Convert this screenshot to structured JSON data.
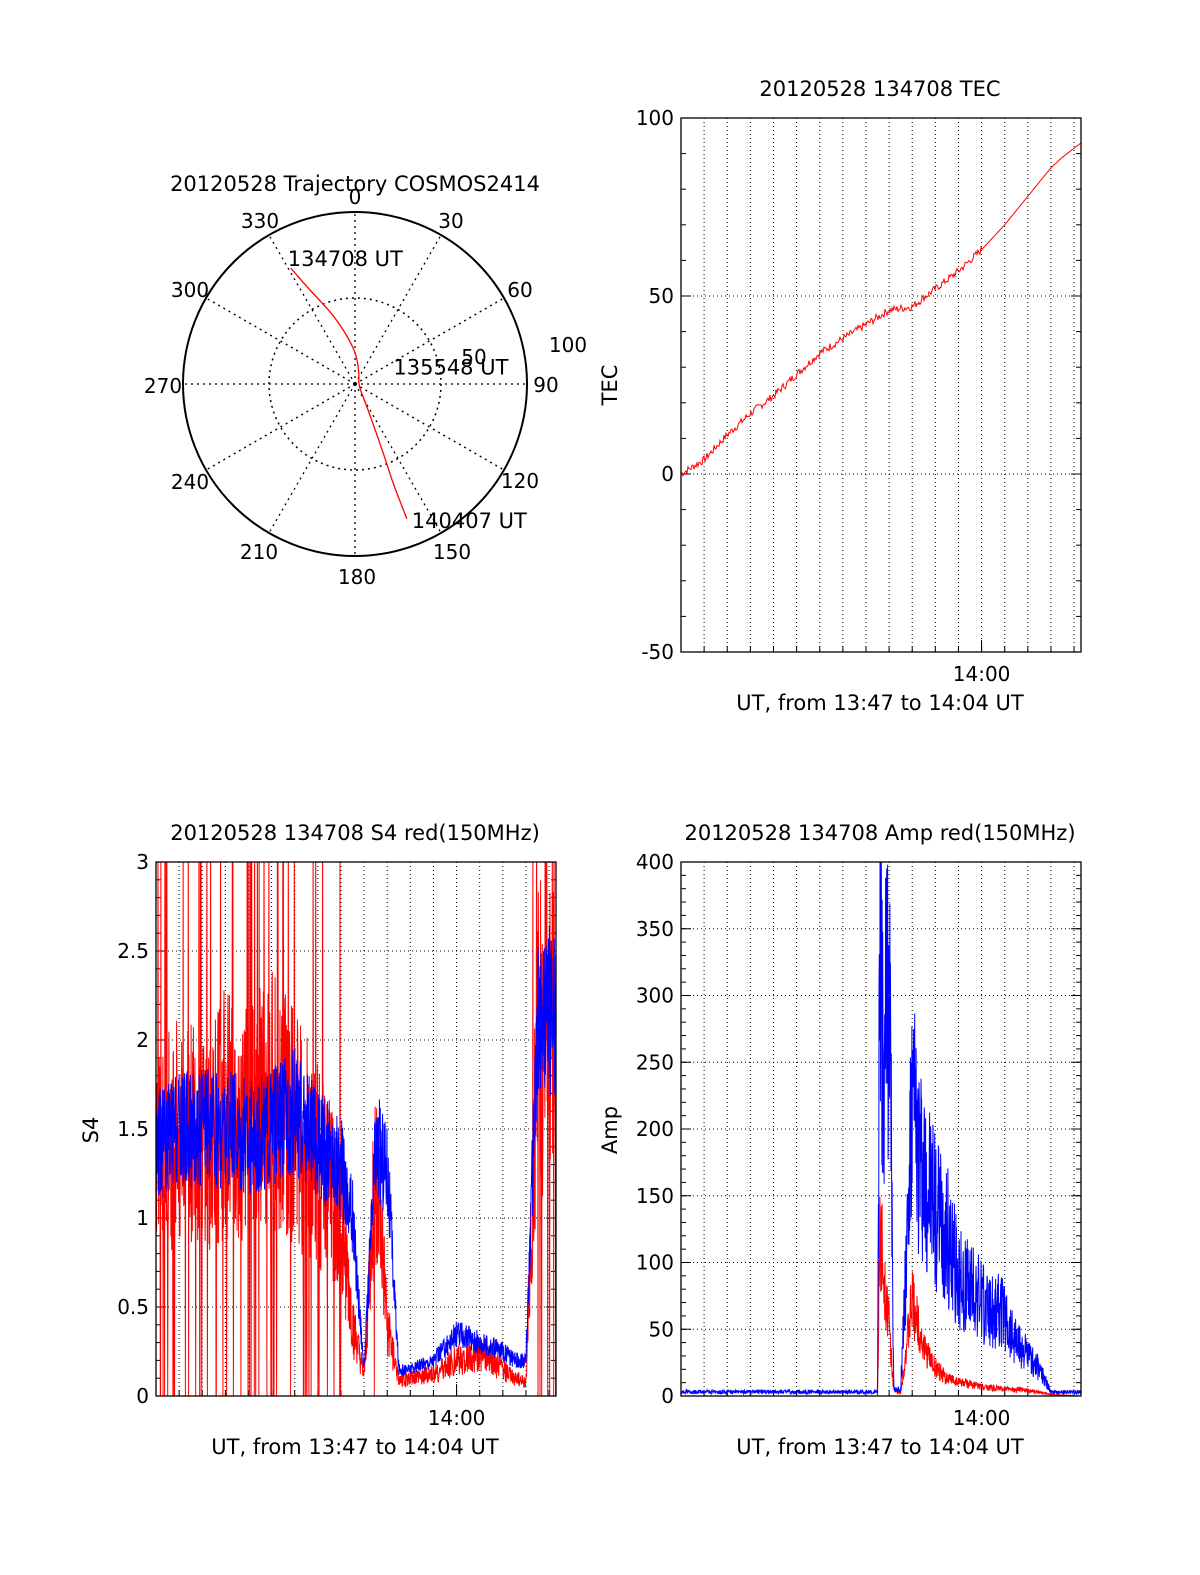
{
  "colors": {
    "red": "#ff0000",
    "blue": "#0000ff",
    "axis": "#000000",
    "grid": "#000000"
  },
  "chart_data": [
    {
      "type": "polar",
      "title": "20120528 Trajectory COSMOS2414",
      "angle_labels": [
        "0",
        "30",
        "60",
        "90",
        "120",
        "150",
        "180",
        "210",
        "240",
        "270",
        "300",
        "330"
      ],
      "radial_ticks": [
        "50",
        "100"
      ],
      "rlim": [
        0,
        100
      ],
      "grid": true,
      "series": [
        {
          "color": "red",
          "points": [
            [
              331,
              77
            ],
            [
              333,
              66
            ],
            [
              337,
              53
            ],
            [
              343,
              41
            ],
            [
              351,
              28
            ],
            [
              3,
              17
            ],
            [
              24,
              6
            ],
            [
              101,
              2
            ],
            [
              150,
              11
            ],
            [
              155,
              23
            ],
            [
              157,
              35
            ],
            [
              158,
              47
            ],
            [
              159,
              60
            ],
            [
              159,
              72
            ],
            [
              159,
              84
            ]
          ]
        }
      ],
      "annotations": [
        {
          "text": "134708 UT",
          "az": 331,
          "r": 77
        },
        {
          "text": "135548 UT",
          "az": 101,
          "r": 2
        },
        {
          "text": "140407 UT",
          "az": 159,
          "r": 84
        }
      ]
    },
    {
      "type": "line",
      "title": "20120528 134708 TEC",
      "xlabel": "UT, from 13:47 to 14:04 UT",
      "ylabel": "TEC",
      "xlim": [
        0,
        17.3
      ],
      "ylim": [
        -50,
        100
      ],
      "yticks": [
        "-50",
        "0",
        "50",
        "100"
      ],
      "xticks": [
        {
          "label": "14:00",
          "at": 13
        }
      ],
      "grid": true,
      "series": [
        {
          "color": "red",
          "x": [
            0,
            1,
            2,
            3,
            4,
            5,
            6,
            7,
            8,
            9,
            10,
            11,
            12,
            13,
            14,
            15,
            16,
            16.5,
            17.3
          ],
          "y": [
            0,
            4,
            11,
            17,
            22,
            28,
            34,
            38,
            42,
            46,
            47,
            52,
            57,
            63,
            70,
            78,
            86,
            89,
            93
          ]
        }
      ]
    },
    {
      "type": "line",
      "title": "20120528 134708 S4 red(150MHz)",
      "xlabel": "UT, from 13:47 to 14:04 UT",
      "ylabel": "S4",
      "xlim": [
        0,
        17.3
      ],
      "ylim": [
        0,
        3
      ],
      "yticks": [
        "0",
        "0.5",
        "1",
        "1.5",
        "2",
        "2.5",
        "3"
      ],
      "xticks": [
        {
          "label": "14:00",
          "at": 13
        }
      ],
      "grid": true,
      "series": [
        {
          "color": "red",
          "x": [
            0,
            1,
            2,
            3,
            4,
            5,
            6,
            7,
            8,
            8.5,
            9,
            9.5,
            10,
            10.5,
            11,
            12,
            13,
            14,
            15,
            15.5,
            16,
            16.5,
            17.3
          ],
          "y": [
            1.3,
            1.5,
            1.4,
            1.6,
            1.5,
            1.7,
            1.5,
            1.3,
            1.0,
            0.4,
            0.1,
            1.3,
            0.4,
            0.08,
            0.1,
            0.12,
            0.2,
            0.25,
            0.15,
            0.1,
            0.08,
            2.0,
            2.1
          ]
        },
        {
          "color": "blue",
          "x": [
            0,
            1,
            2,
            3,
            4,
            5,
            6,
            7,
            8,
            8.5,
            9,
            9.5,
            10,
            10.5,
            11,
            12,
            13,
            14,
            15,
            15.5,
            16,
            16.5,
            17.3
          ],
          "y": [
            1.4,
            1.5,
            1.5,
            1.5,
            1.45,
            1.5,
            1.6,
            1.4,
            1.3,
            1.0,
            0.15,
            1.4,
            1.3,
            0.15,
            0.15,
            0.2,
            0.35,
            0.3,
            0.25,
            0.2,
            0.2,
            2.1,
            2.2
          ]
        }
      ]
    },
    {
      "type": "line",
      "title": "20120528 134708 Amp red(150MHz)",
      "xlabel": "UT, from 13:47 to 14:04 UT",
      "ylabel": "Amp",
      "xlim": [
        0,
        17.3
      ],
      "ylim": [
        0,
        400
      ],
      "yticks": [
        "0",
        "50",
        "100",
        "150",
        "200",
        "250",
        "300",
        "350",
        "400"
      ],
      "xticks": [
        {
          "label": "14:00",
          "at": 13
        }
      ],
      "grid": true,
      "series": [
        {
          "color": "red",
          "x": [
            0,
            8.5,
            8.6,
            8.8,
            9.0,
            9.2,
            9.5,
            10.0,
            10.5,
            11,
            11.5,
            12,
            13,
            14,
            15,
            16,
            17.3
          ],
          "y": [
            0,
            0,
            140,
            100,
            60,
            5,
            2,
            80,
            40,
            25,
            15,
            12,
            8,
            6,
            4,
            1,
            0
          ]
        },
        {
          "color": "blue",
          "x": [
            0,
            8.5,
            8.6,
            8.8,
            9.0,
            9.2,
            9.5,
            10.0,
            10.5,
            11,
            11.5,
            12,
            13,
            14,
            14.5,
            15,
            15.5,
            16,
            17.3
          ],
          "y": [
            3,
            3,
            360,
            250,
            330,
            5,
            5,
            210,
            160,
            140,
            120,
            90,
            70,
            60,
            40,
            30,
            20,
            3,
            3
          ]
        }
      ]
    }
  ]
}
